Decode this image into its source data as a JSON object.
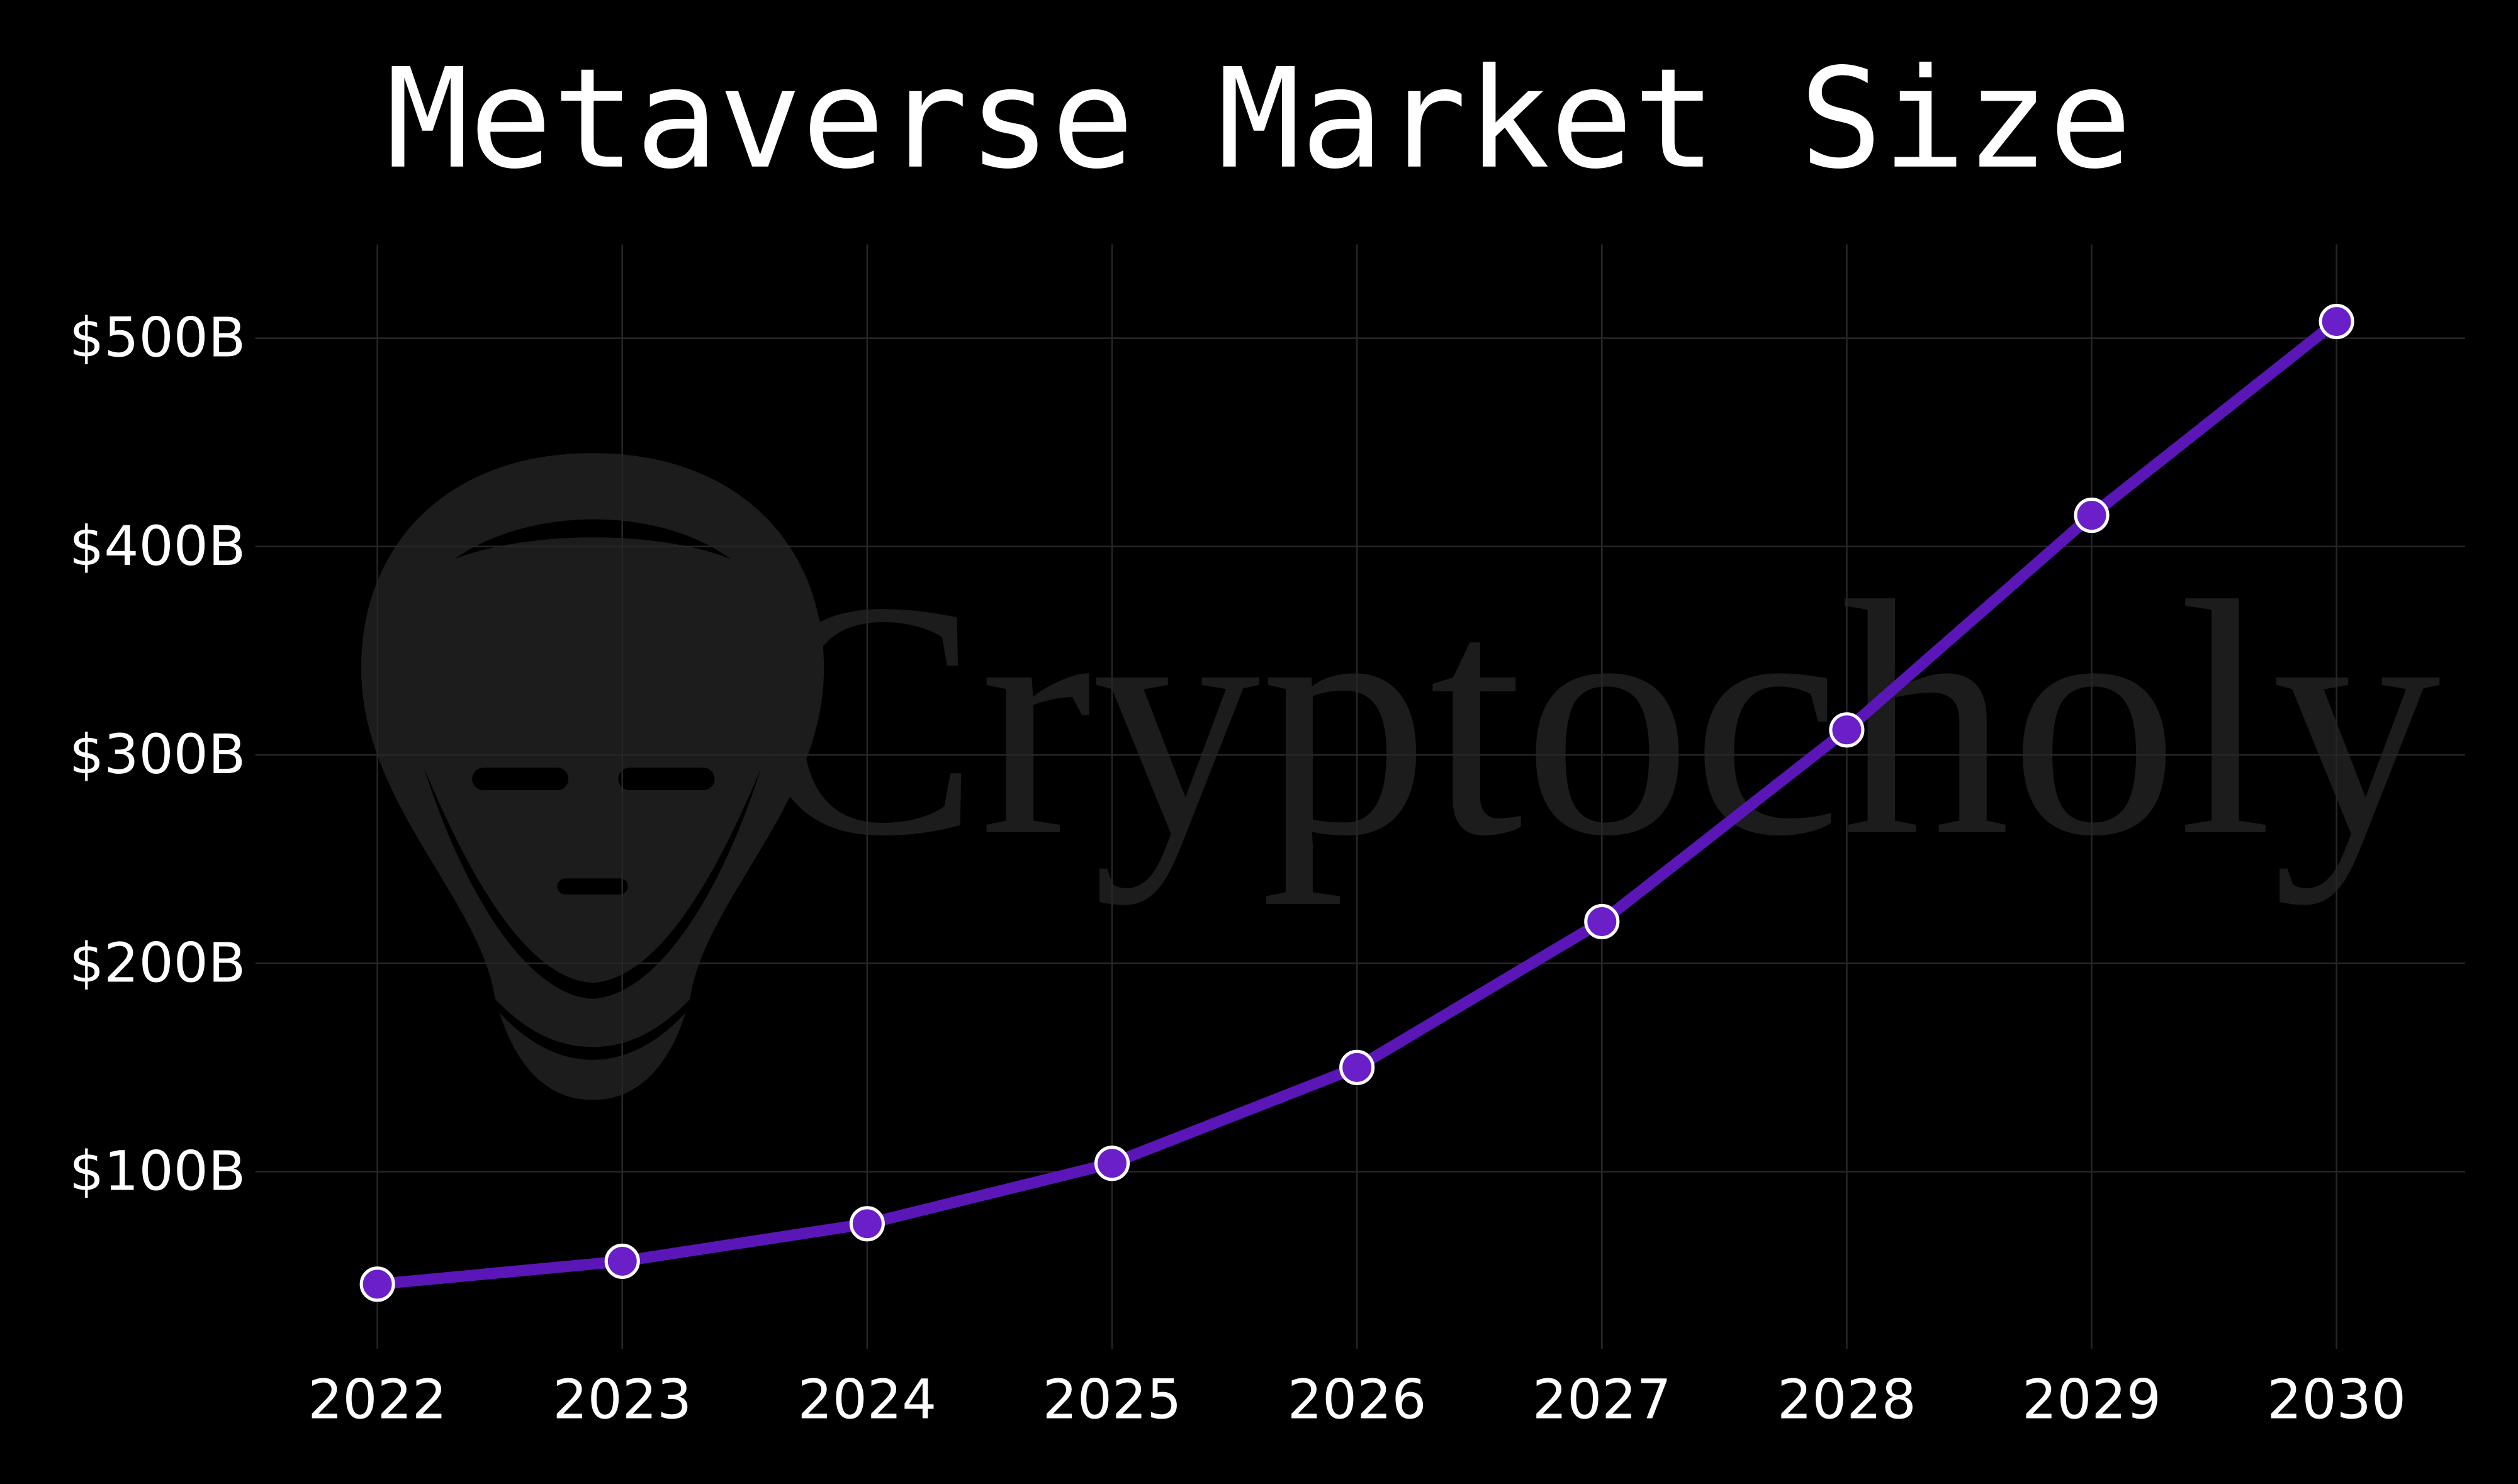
{
  "watermark": "Cryptocholy",
  "chart_data": {
    "type": "line",
    "title": "Metaverse Market Size",
    "categories": [
      "2022",
      "2023",
      "2024",
      "2025",
      "2026",
      "2027",
      "2028",
      "2029",
      "2030"
    ],
    "series": [
      {
        "name": "Metaverse Market Size",
        "color": "#5b16b8",
        "marker_color": "#6a1fc8",
        "values": [
          46,
          57,
          75,
          104,
          150,
          220,
          312,
          415,
          508
        ]
      }
    ],
    "ylim": [
      15,
      545
    ],
    "yticks": [
      {
        "value": 100,
        "label": "$100B"
      },
      {
        "value": 200,
        "label": "$200B"
      },
      {
        "value": 300,
        "label": "$300B"
      },
      {
        "value": 400,
        "label": "$400B"
      },
      {
        "value": 500,
        "label": "$500B"
      }
    ],
    "grid": true
  }
}
